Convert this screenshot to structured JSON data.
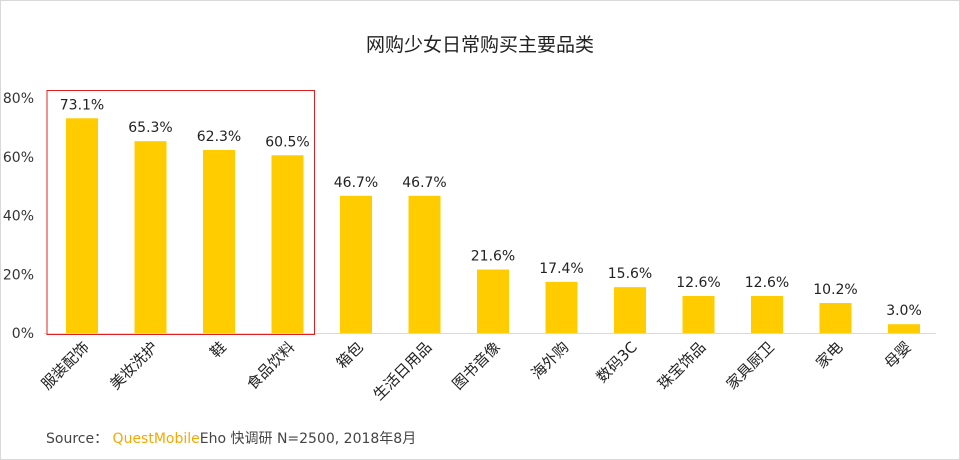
{
  "chart_data": {
    "type": "bar",
    "title": "网购少女日常购买主要品类",
    "categories": [
      "服装配饰",
      "美妆洗护",
      "鞋",
      "食品饮料",
      "箱包",
      "生活日用品",
      "图书音像",
      "海外购",
      "数码3C",
      "珠宝饰品",
      "家具厨卫",
      "家电",
      "母婴"
    ],
    "values": [
      73.1,
      65.3,
      62.3,
      60.5,
      46.7,
      46.7,
      21.6,
      17.4,
      15.6,
      12.6,
      12.6,
      10.2,
      3.0
    ],
    "data_labels": [
      "73.1%",
      "65.3%",
      "62.3%",
      "60.5%",
      "46.7%",
      "46.7%",
      "21.6%",
      "17.4%",
      "15.6%",
      "12.6%",
      "12.6%",
      "10.2%",
      "3.0%"
    ],
    "yticks": [
      "0%",
      "20%",
      "40%",
      "60%",
      "80%"
    ],
    "ylim": [
      0,
      80
    ],
    "xlabel": "",
    "ylabel": "",
    "grid": false,
    "highlighted_categories": [
      "服装配饰",
      "美妆洗护",
      "鞋",
      "食品饮料"
    ],
    "bar_color": "#ffcc00",
    "highlight_box_color": "#e02020"
  },
  "source": {
    "prefix": "Source：",
    "brand": "QuestMobile",
    "rest": "Eho 快调研 N=2500, 2018年8月"
  }
}
